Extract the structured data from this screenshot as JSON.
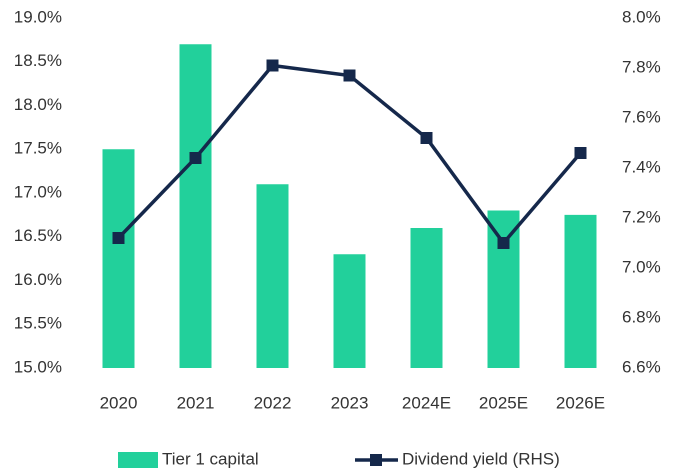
{
  "chart_data": {
    "type": "bar",
    "categories": [
      "2020",
      "2021",
      "2022",
      "2023",
      "2024E",
      "2025E",
      "2026E"
    ],
    "series": [
      {
        "name": "Tier 1 capital",
        "type": "bar",
        "color": "#22d09b",
        "values": [
          17.5,
          18.7,
          17.1,
          16.3,
          16.6,
          16.8,
          16.75
        ]
      },
      {
        "name": "Dividend yield (RHS)",
        "type": "line",
        "axis": "y2",
        "color": "#15284b",
        "values": [
          7.12,
          7.44,
          7.81,
          7.77,
          7.52,
          7.1,
          7.46
        ]
      }
    ],
    "ylim": [
      15,
      19
    ],
    "yticks": [
      {
        "value": 15,
        "label": "15.0%"
      },
      {
        "value": 15.5,
        "label": "15.5%"
      },
      {
        "value": 16,
        "label": "16.0%"
      },
      {
        "value": 16.5,
        "label": "16.5%"
      },
      {
        "value": 17,
        "label": "17.0%"
      },
      {
        "value": 17.5,
        "label": "17.5%"
      },
      {
        "value": 18,
        "label": "18.0%"
      },
      {
        "value": 18.5,
        "label": "18.5%"
      },
      {
        "value": 19,
        "label": "19.0%"
      }
    ],
    "y2lim": [
      6.6,
      8.0
    ],
    "y2ticks": [
      {
        "value": 6.6,
        "label": "6.6%"
      },
      {
        "value": 6.8,
        "label": "6.8%"
      },
      {
        "value": 7.0,
        "label": "7.0%"
      },
      {
        "value": 7.2,
        "label": "7.2%"
      },
      {
        "value": 7.4,
        "label": "7.4%"
      },
      {
        "value": 7.6,
        "label": "7.6%"
      },
      {
        "value": 7.8,
        "label": "7.8%"
      },
      {
        "value": 8.0,
        "label": "8.0%"
      }
    ],
    "grid": false,
    "legend": "bottom"
  }
}
